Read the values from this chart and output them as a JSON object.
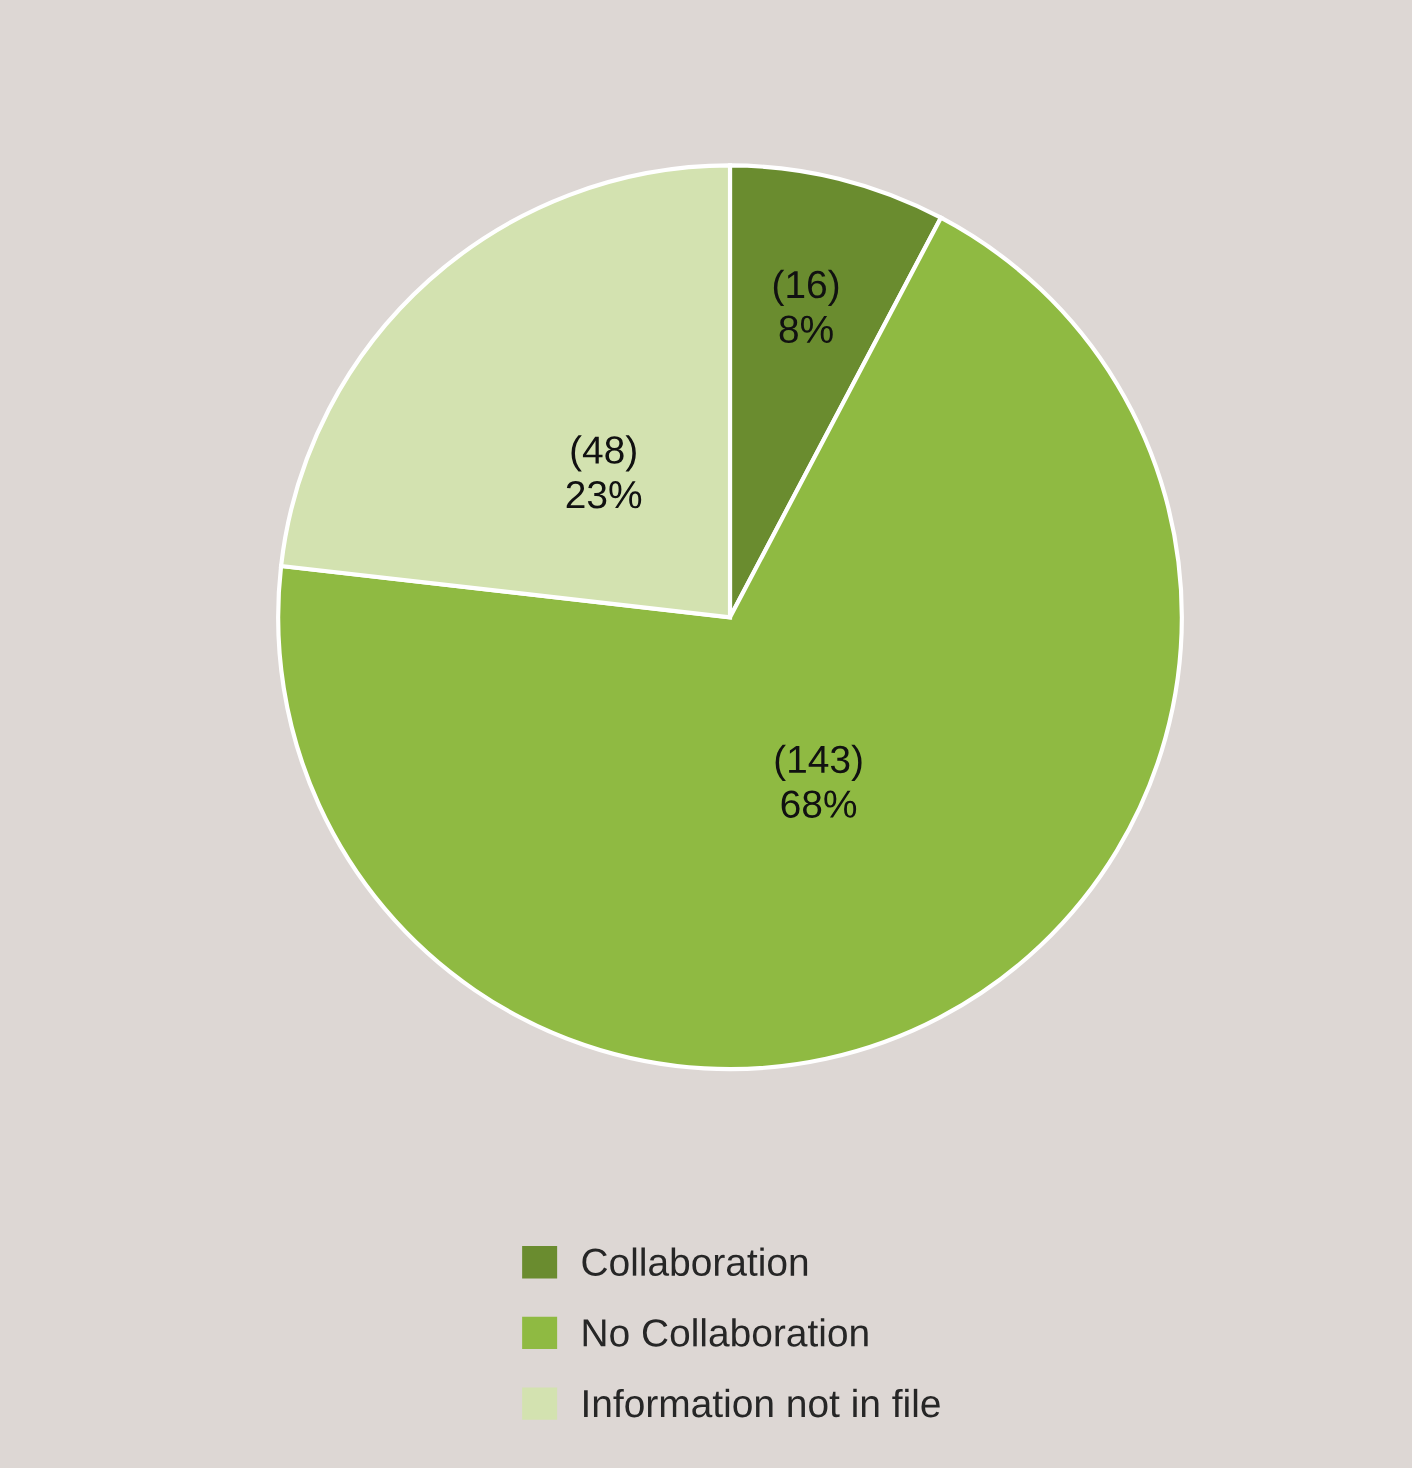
{
  "chart_data": {
    "type": "pie",
    "categories": [
      "Collaboration",
      "No Collaboration",
      "Information not in file"
    ],
    "values": [
      16,
      143,
      48
    ],
    "value_labels": [
      "(16)\n8%",
      "(143)\n68%",
      "(48)\n23%"
    ],
    "colors": [
      "#6a8c2f",
      "#8fba42",
      "#d3e2b0"
    ],
    "legend": "bottom"
  }
}
